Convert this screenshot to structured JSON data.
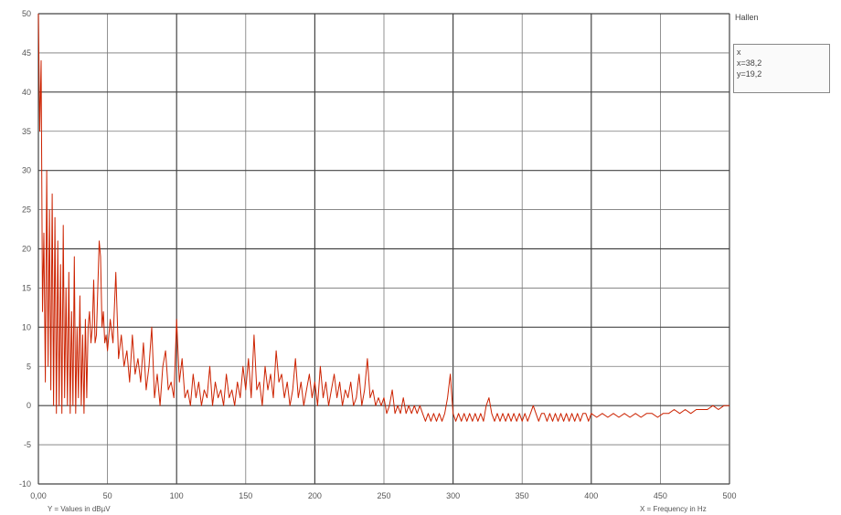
{
  "legend": {
    "title": "Hallen",
    "readout_lines": [
      "x",
      "x=38,2",
      "y=19,2"
    ]
  },
  "chart_data": {
    "type": "line",
    "xlabel": "X = Frequency in Hz",
    "ylabel": "Y = Values in dBµV",
    "xlim": [
      0,
      500
    ],
    "ylim": [
      -10,
      50
    ],
    "x_ticks": [
      0,
      50,
      100,
      150,
      200,
      250,
      300,
      350,
      400,
      450,
      500
    ],
    "x_tick_labels": [
      "0,00",
      "50",
      "100",
      "150",
      "200",
      "250",
      "300",
      "350",
      "400",
      "450",
      "500"
    ],
    "y_ticks": [
      -10,
      -5,
      0,
      5,
      10,
      15,
      20,
      25,
      30,
      35,
      40,
      45,
      50
    ],
    "y_tick_labels": [
      "-10",
      "-5",
      "0",
      "5",
      "10",
      "15",
      "20",
      "25",
      "30",
      "35",
      "40",
      "45",
      "50"
    ],
    "grid": true,
    "line_color": "#cc2200",
    "series": [
      {
        "values": [
          [
            0,
            50
          ],
          [
            1,
            35
          ],
          [
            2,
            44
          ],
          [
            3,
            12
          ],
          [
            4,
            22
          ],
          [
            5,
            3
          ],
          [
            6,
            30
          ],
          [
            7,
            5
          ],
          [
            8,
            25
          ],
          [
            9,
            2
          ],
          [
            10,
            27
          ],
          [
            11,
            0
          ],
          [
            12,
            24
          ],
          [
            13,
            -1
          ],
          [
            14,
            21
          ],
          [
            15,
            0
          ],
          [
            16,
            18
          ],
          [
            17,
            -1
          ],
          [
            18,
            23
          ],
          [
            19,
            1
          ],
          [
            20,
            15
          ],
          [
            21,
            0
          ],
          [
            22,
            17
          ],
          [
            23,
            -1
          ],
          [
            24,
            12
          ],
          [
            25,
            0
          ],
          [
            26,
            19
          ],
          [
            27,
            -1
          ],
          [
            28,
            10
          ],
          [
            29,
            1
          ],
          [
            30,
            14
          ],
          [
            31,
            0
          ],
          [
            32,
            9
          ],
          [
            33,
            -1
          ],
          [
            34,
            11
          ],
          [
            35,
            1
          ],
          [
            36,
            10
          ],
          [
            37,
            12
          ],
          [
            38,
            8
          ],
          [
            39,
            10
          ],
          [
            40,
            16
          ],
          [
            41,
            8
          ],
          [
            42,
            9
          ],
          [
            43,
            15
          ],
          [
            44,
            21
          ],
          [
            45,
            19
          ],
          [
            46,
            10
          ],
          [
            47,
            12
          ],
          [
            48,
            8
          ],
          [
            49,
            9
          ],
          [
            50,
            7
          ],
          [
            52,
            11
          ],
          [
            54,
            8
          ],
          [
            56,
            17
          ],
          [
            58,
            6
          ],
          [
            60,
            9
          ],
          [
            62,
            5
          ],
          [
            64,
            7
          ],
          [
            66,
            3
          ],
          [
            68,
            9
          ],
          [
            70,
            4
          ],
          [
            72,
            6
          ],
          [
            74,
            3
          ],
          [
            76,
            8
          ],
          [
            78,
            2
          ],
          [
            80,
            5
          ],
          [
            82,
            10
          ],
          [
            84,
            1
          ],
          [
            86,
            4
          ],
          [
            88,
            0
          ],
          [
            90,
            5
          ],
          [
            92,
            7
          ],
          [
            94,
            2
          ],
          [
            96,
            3
          ],
          [
            98,
            1
          ],
          [
            100,
            11
          ],
          [
            102,
            3
          ],
          [
            104,
            6
          ],
          [
            106,
            1
          ],
          [
            108,
            2
          ],
          [
            110,
            0
          ],
          [
            112,
            4
          ],
          [
            114,
            1
          ],
          [
            116,
            3
          ],
          [
            118,
            0
          ],
          [
            120,
            2
          ],
          [
            122,
            1
          ],
          [
            124,
            5
          ],
          [
            126,
            0
          ],
          [
            128,
            3
          ],
          [
            130,
            1
          ],
          [
            132,
            2
          ],
          [
            134,
            0
          ],
          [
            136,
            4
          ],
          [
            138,
            1
          ],
          [
            140,
            2
          ],
          [
            142,
            0
          ],
          [
            144,
            3
          ],
          [
            146,
            1
          ],
          [
            148,
            5
          ],
          [
            150,
            2
          ],
          [
            152,
            6
          ],
          [
            154,
            1
          ],
          [
            156,
            9
          ],
          [
            158,
            2
          ],
          [
            160,
            3
          ],
          [
            162,
            0
          ],
          [
            164,
            5
          ],
          [
            166,
            2
          ],
          [
            168,
            4
          ],
          [
            170,
            1
          ],
          [
            172,
            7
          ],
          [
            174,
            3
          ],
          [
            176,
            4
          ],
          [
            178,
            1
          ],
          [
            180,
            3
          ],
          [
            182,
            0
          ],
          [
            184,
            2
          ],
          [
            186,
            6
          ],
          [
            188,
            1
          ],
          [
            190,
            3
          ],
          [
            192,
            0
          ],
          [
            194,
            2
          ],
          [
            196,
            4
          ],
          [
            198,
            1
          ],
          [
            200,
            3
          ],
          [
            202,
            0
          ],
          [
            204,
            5
          ],
          [
            206,
            1
          ],
          [
            208,
            3
          ],
          [
            210,
            0
          ],
          [
            212,
            2
          ],
          [
            214,
            4
          ],
          [
            216,
            1
          ],
          [
            218,
            3
          ],
          [
            220,
            0
          ],
          [
            222,
            2
          ],
          [
            224,
            1
          ],
          [
            226,
            3
          ],
          [
            228,
            0
          ],
          [
            230,
            1
          ],
          [
            232,
            4
          ],
          [
            234,
            0
          ],
          [
            236,
            2
          ],
          [
            238,
            6
          ],
          [
            240,
            1
          ],
          [
            242,
            2
          ],
          [
            244,
            0
          ],
          [
            246,
            1
          ],
          [
            248,
            0
          ],
          [
            250,
            1
          ],
          [
            252,
            -1
          ],
          [
            254,
            0
          ],
          [
            256,
            2
          ],
          [
            258,
            -1
          ],
          [
            260,
            0
          ],
          [
            262,
            -1
          ],
          [
            264,
            1
          ],
          [
            266,
            -1
          ],
          [
            268,
            0
          ],
          [
            270,
            -1
          ],
          [
            272,
            0
          ],
          [
            274,
            -1
          ],
          [
            276,
            0
          ],
          [
            278,
            -1
          ],
          [
            280,
            -2
          ],
          [
            282,
            -1
          ],
          [
            284,
            -2
          ],
          [
            286,
            -1
          ],
          [
            288,
            -2
          ],
          [
            290,
            -1
          ],
          [
            292,
            -2
          ],
          [
            294,
            -1
          ],
          [
            296,
            1
          ],
          [
            298,
            4
          ],
          [
            300,
            -1
          ],
          [
            302,
            -2
          ],
          [
            304,
            -1
          ],
          [
            306,
            -2
          ],
          [
            308,
            -1
          ],
          [
            310,
            -2
          ],
          [
            312,
            -1
          ],
          [
            314,
            -2
          ],
          [
            316,
            -1
          ],
          [
            318,
            -2
          ],
          [
            320,
            -1
          ],
          [
            322,
            -2
          ],
          [
            324,
            0
          ],
          [
            326,
            1
          ],
          [
            328,
            -1
          ],
          [
            330,
            -2
          ],
          [
            332,
            -1
          ],
          [
            334,
            -2
          ],
          [
            336,
            -1
          ],
          [
            338,
            -2
          ],
          [
            340,
            -1
          ],
          [
            342,
            -2
          ],
          [
            344,
            -1
          ],
          [
            346,
            -2
          ],
          [
            348,
            -1
          ],
          [
            350,
            -2
          ],
          [
            352,
            -1
          ],
          [
            354,
            -2
          ],
          [
            356,
            -1
          ],
          [
            358,
            0
          ],
          [
            360,
            -1
          ],
          [
            362,
            -2
          ],
          [
            364,
            -1
          ],
          [
            366,
            -1
          ],
          [
            368,
            -2
          ],
          [
            370,
            -1
          ],
          [
            372,
            -2
          ],
          [
            374,
            -1
          ],
          [
            376,
            -2
          ],
          [
            378,
            -1
          ],
          [
            380,
            -2
          ],
          [
            382,
            -1
          ],
          [
            384,
            -2
          ],
          [
            386,
            -1
          ],
          [
            388,
            -2
          ],
          [
            390,
            -1
          ],
          [
            392,
            -2
          ],
          [
            394,
            -1
          ],
          [
            396,
            -1
          ],
          [
            398,
            -2
          ],
          [
            400,
            -1
          ],
          [
            404,
            -1.5
          ],
          [
            408,
            -1
          ],
          [
            412,
            -1.5
          ],
          [
            416,
            -1
          ],
          [
            420,
            -1.5
          ],
          [
            424,
            -1
          ],
          [
            428,
            -1.5
          ],
          [
            432,
            -1
          ],
          [
            436,
            -1.5
          ],
          [
            440,
            -1
          ],
          [
            444,
            -1
          ],
          [
            448,
            -1.5
          ],
          [
            452,
            -1
          ],
          [
            456,
            -1
          ],
          [
            460,
            -0.5
          ],
          [
            464,
            -1
          ],
          [
            468,
            -0.5
          ],
          [
            472,
            -1
          ],
          [
            476,
            -0.5
          ],
          [
            480,
            -0.5
          ],
          [
            484,
            -0.5
          ],
          [
            488,
            0
          ],
          [
            492,
            -0.5
          ],
          [
            496,
            0
          ],
          [
            500,
            0
          ]
        ]
      }
    ]
  }
}
